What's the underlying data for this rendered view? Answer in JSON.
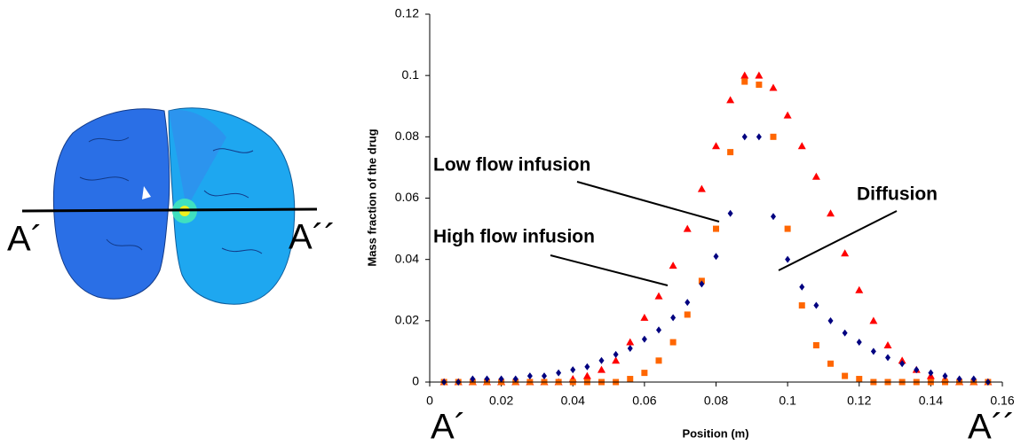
{
  "brain_image": {
    "left_label": "A´",
    "right_label": "A´´"
  },
  "chart_data": {
    "type": "scatter",
    "x_label": "Position (m)",
    "y_label": "Mass fraction of the drug",
    "x_end_labels": {
      "left": "A´",
      "right": "A´´"
    },
    "xlim": [
      0,
      0.16
    ],
    "ylim": [
      0,
      0.12
    ],
    "xticks": [
      0,
      0.02,
      0.04,
      0.06,
      0.08,
      0.1,
      0.12,
      0.14,
      0.16
    ],
    "yticks": [
      0,
      0.02,
      0.04,
      0.06,
      0.08,
      0.1,
      0.12
    ],
    "x": [
      0.004,
      0.008,
      0.012,
      0.016,
      0.02,
      0.024,
      0.028,
      0.032,
      0.036,
      0.04,
      0.044,
      0.048,
      0.052,
      0.056,
      0.06,
      0.064,
      0.068,
      0.072,
      0.076,
      0.08,
      0.084,
      0.088,
      0.092,
      0.096,
      0.1,
      0.104,
      0.108,
      0.112,
      0.116,
      0.12,
      0.124,
      0.128,
      0.132,
      0.136,
      0.14,
      0.144,
      0.148,
      0.152,
      0.156
    ],
    "series": [
      {
        "name": "High flow infusion",
        "color": "#ff0000",
        "marker": "triangle",
        "values": [
          0,
          0,
          0,
          0,
          0,
          0,
          0,
          0,
          0,
          0.001,
          0.002,
          0.004,
          0.007,
          0.013,
          0.021,
          0.028,
          0.038,
          0.05,
          0.063,
          0.077,
          0.092,
          0.1,
          0.1,
          0.096,
          0.087,
          0.077,
          0.067,
          0.055,
          0.042,
          0.03,
          0.02,
          0.012,
          0.007,
          0.004,
          0.002,
          0.001,
          0,
          0,
          0
        ]
      },
      {
        "name": "Low flow infusion",
        "color": "#ff6600",
        "marker": "square",
        "values": [
          0,
          0,
          0,
          0,
          0,
          0,
          0,
          0,
          0,
          0,
          0,
          0,
          0,
          0.001,
          0.003,
          0.007,
          0.013,
          0.022,
          0.033,
          0.05,
          0.075,
          0.098,
          0.097,
          0.08,
          0.05,
          0.025,
          0.012,
          0.006,
          0.002,
          0.001,
          0,
          0,
          0,
          0,
          0,
          0,
          0,
          0,
          0
        ]
      },
      {
        "name": "Diffusion",
        "color": "#000080",
        "marker": "diamond",
        "values": [
          0,
          0,
          0.001,
          0.001,
          0.001,
          0.001,
          0.002,
          0.002,
          0.003,
          0.004,
          0.005,
          0.007,
          0.009,
          0.011,
          0.014,
          0.017,
          0.021,
          0.026,
          0.032,
          0.041,
          0.055,
          0.08,
          0.08,
          0.054,
          0.04,
          0.031,
          0.025,
          0.02,
          0.016,
          0.013,
          0.01,
          0.008,
          0.006,
          0.004,
          0.003,
          0.002,
          0.001,
          0.001,
          0
        ]
      }
    ]
  }
}
